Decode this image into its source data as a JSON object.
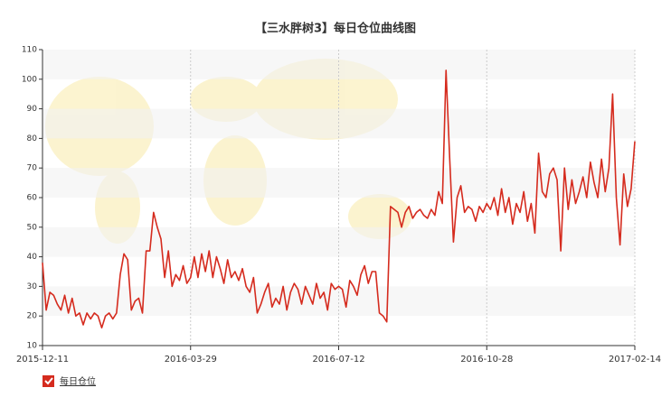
{
  "chart_data": {
    "type": "line",
    "title": "【三水胖树3】每日仓位曲线图",
    "categories": [
      "2015-12-11",
      null,
      null,
      null,
      null,
      null,
      null,
      null,
      null,
      null,
      null,
      null,
      null,
      null,
      null,
      null,
      null,
      null,
      null,
      null,
      null,
      null,
      null,
      null,
      null,
      null,
      null,
      null,
      null,
      null,
      null,
      null,
      null,
      null,
      null,
      null,
      null,
      null,
      null,
      null,
      "2016-03-29",
      null,
      null,
      null,
      null,
      null,
      null,
      null,
      null,
      null,
      null,
      null,
      null,
      null,
      null,
      null,
      null,
      null,
      null,
      null,
      null,
      null,
      null,
      null,
      null,
      null,
      null,
      null,
      null,
      null,
      null,
      null,
      null,
      null,
      null,
      null,
      null,
      null,
      null,
      null,
      "2016-07-12",
      null,
      null,
      null,
      null,
      null,
      null,
      null,
      null,
      null,
      null,
      null,
      null,
      null,
      null,
      null,
      null,
      null,
      null,
      null,
      null,
      null,
      null,
      null,
      null,
      null,
      null,
      null,
      null,
      null,
      null,
      null,
      null,
      null,
      null,
      null,
      null,
      null,
      null,
      null,
      "2016-10-28",
      null,
      null,
      null,
      null,
      null,
      null,
      null,
      null,
      null,
      null,
      null,
      null,
      null,
      null,
      null,
      null,
      null,
      null,
      null,
      null,
      null,
      null,
      null,
      null,
      null,
      null,
      null,
      null,
      null,
      null,
      null,
      null,
      null,
      null,
      null,
      null,
      null,
      null,
      null,
      "2017-02-14"
    ],
    "series": [
      {
        "name": "每日仓位",
        "color": "#d52b1e",
        "values": [
          38,
          22,
          28,
          27,
          24,
          22,
          27,
          21,
          26,
          20,
          21,
          17,
          21,
          19,
          21,
          20,
          16,
          20,
          21,
          19,
          21,
          34,
          41,
          39,
          22,
          25,
          26,
          21,
          42,
          42,
          55,
          50,
          46,
          33,
          42,
          30,
          34,
          32,
          37,
          31,
          33,
          40,
          33,
          41,
          35,
          42,
          33,
          40,
          36,
          31,
          39,
          33,
          35,
          32,
          36,
          30,
          28,
          33,
          21,
          24,
          28,
          31,
          23,
          26,
          24,
          30,
          22,
          28,
          31,
          29,
          24,
          30,
          27,
          24,
          31,
          26,
          28,
          22,
          31,
          29,
          30,
          29,
          23,
          32,
          30,
          27,
          34,
          37,
          31,
          35,
          35,
          21,
          20,
          18,
          57,
          56,
          55,
          50,
          55,
          57,
          53,
          55,
          56,
          54,
          53,
          56,
          54,
          62,
          58,
          103,
          73,
          45,
          60,
          64,
          55,
          57,
          56,
          52,
          57,
          55,
          58,
          56,
          60,
          54,
          63,
          55,
          60,
          51,
          58,
          55,
          62,
          52,
          58,
          48,
          75,
          62,
          60,
          68,
          70,
          66,
          42,
          70,
          56,
          66,
          58,
          62,
          67,
          60,
          72,
          65,
          60,
          73,
          62,
          70,
          95,
          60,
          44,
          68,
          57,
          63,
          79
        ]
      }
    ],
    "ylim": [
      10,
      110
    ],
    "yticks": [
      10,
      20,
      30,
      40,
      50,
      60,
      70,
      80,
      90,
      100,
      110
    ]
  }
}
